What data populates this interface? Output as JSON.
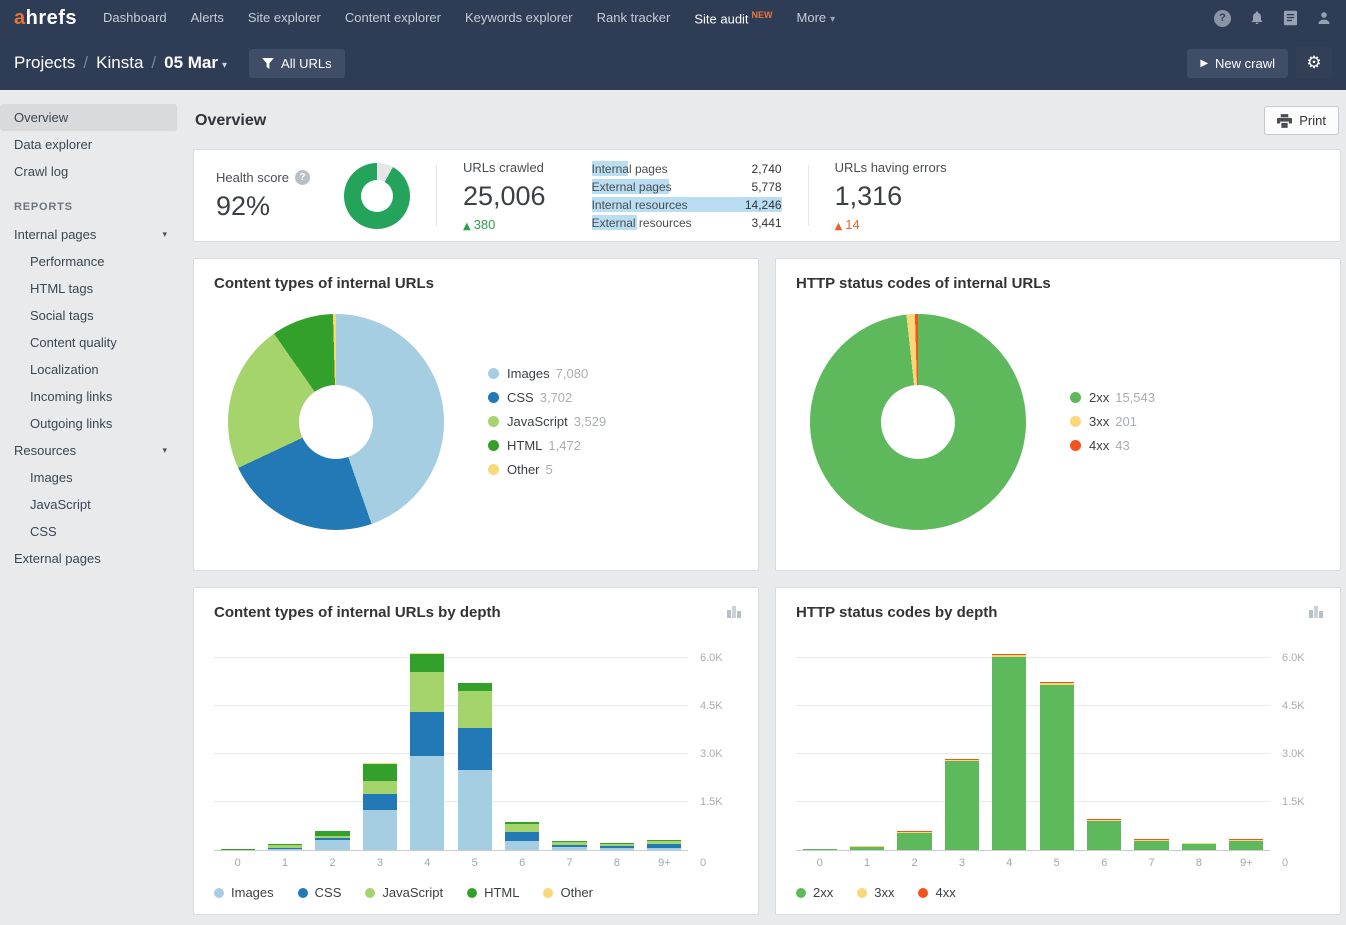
{
  "nav": {
    "logo_a": "a",
    "logo_rest": "hrefs",
    "items": [
      {
        "label": "Dashboard"
      },
      {
        "label": "Alerts"
      },
      {
        "label": "Site explorer"
      },
      {
        "label": "Content explorer"
      },
      {
        "label": "Keywords explorer"
      },
      {
        "label": "Rank tracker"
      },
      {
        "label": "Site audit",
        "active": true,
        "badge": "NEW"
      },
      {
        "label": "More",
        "caret": true
      }
    ]
  },
  "subheader": {
    "breadcrumb": [
      "Projects",
      "Kinsta",
      "05 Mar"
    ],
    "separator": "/",
    "all_urls_label": "All URLs",
    "new_crawl_label": "New crawl"
  },
  "sidebar": {
    "items": [
      {
        "label": "Overview",
        "selected": true
      },
      {
        "label": "Data explorer"
      },
      {
        "label": "Crawl log"
      }
    ],
    "reports_label": "REPORTS",
    "report_items": [
      {
        "label": "Internal pages",
        "caret": true
      },
      {
        "label": "Performance",
        "indent": true
      },
      {
        "label": "HTML tags",
        "indent": true
      },
      {
        "label": "Social tags",
        "indent": true
      },
      {
        "label": "Content quality",
        "indent": true
      },
      {
        "label": "Localization",
        "indent": true
      },
      {
        "label": "Incoming links",
        "indent": true
      },
      {
        "label": "Outgoing links",
        "indent": true
      },
      {
        "label": "Resources",
        "caret": true
      },
      {
        "label": "Images",
        "indent": true
      },
      {
        "label": "JavaScript",
        "indent": true
      },
      {
        "label": "CSS",
        "indent": true
      },
      {
        "label": "External pages"
      }
    ]
  },
  "page": {
    "title": "Overview",
    "print_label": "Print"
  },
  "summary": {
    "health_label": "Health score",
    "health_value": "92%",
    "health_pct": 92,
    "health_color": "#23a45a",
    "health_rest_color": "#e4e6e8",
    "crawled_label": "URLs crawled",
    "crawled_value": "25,006",
    "crawled_delta": "380",
    "errors_label": "URLs having errors",
    "errors_value": "1,316",
    "errors_delta": "14",
    "breakdown": [
      {
        "label": "Internal pages",
        "value": "2,740",
        "pct": 19
      },
      {
        "label": "External pages",
        "value": "5,778",
        "pct": 41
      },
      {
        "label": "Internal resources",
        "value": "14,246",
        "pct": 100
      },
      {
        "label": "External resources",
        "value": "3,441",
        "pct": 24
      }
    ]
  },
  "icons": {
    "help": "?",
    "caret_down": "▾",
    "play": "▶",
    "delta_up": "▲",
    "gear": "⚙"
  },
  "colors": {
    "navbar": "#2e3c55",
    "accent_orange": "#e8743c",
    "highlight_blue": "#b9ddf1",
    "delta_green": "#2e9e4f",
    "delta_orange": "#e8622c"
  },
  "chart_data": [
    {
      "type": "pie",
      "title": "Content types of internal URLs",
      "legend_position": "right",
      "series": [
        {
          "label": "Images",
          "value": 7080,
          "display": "7,080",
          "color": "#a6cee3"
        },
        {
          "label": "CSS",
          "value": 3702,
          "display": "3,702",
          "color": "#2279b5"
        },
        {
          "label": "JavaScript",
          "value": 3529,
          "display": "3,529",
          "color": "#a5d36c"
        },
        {
          "label": "HTML",
          "value": 1472,
          "display": "1,472",
          "color": "#33a02c"
        },
        {
          "label": "Other",
          "value": 5,
          "display": "5",
          "color": "#f8d878"
        }
      ]
    },
    {
      "type": "pie",
      "title": "HTTP status codes of internal URLs",
      "legend_position": "right",
      "series": [
        {
          "label": "2xx",
          "value": 15543,
          "display": "15,543",
          "color": "#5eb95c"
        },
        {
          "label": "3xx",
          "value": 201,
          "display": "201",
          "color": "#f8d878"
        },
        {
          "label": "4xx",
          "value": 43,
          "display": "43",
          "color": "#f4521e"
        }
      ]
    },
    {
      "type": "stacked-bar",
      "title": "Content types of internal URLs by depth",
      "xlabel": "depth",
      "categories": [
        "0",
        "1",
        "2",
        "3",
        "4",
        "5",
        "6",
        "7",
        "8",
        "9+"
      ],
      "ylim": [
        0,
        6500
      ],
      "yticks": [
        {
          "label": "6.0K",
          "value": 6000
        },
        {
          "label": "4.5K",
          "value": 4500
        },
        {
          "label": "3.0K",
          "value": 3000
        },
        {
          "label": "1.5K",
          "value": 1500
        },
        {
          "label": "0",
          "value": 0
        }
      ],
      "grid": true,
      "legend_position": "bottom",
      "series": [
        {
          "name": "Images",
          "color": "#a6cee3",
          "values": [
            0,
            20,
            300,
            1250,
            2950,
            2500,
            270,
            90,
            70,
            70
          ]
        },
        {
          "name": "CSS",
          "color": "#2279b5",
          "values": [
            0,
            10,
            70,
            500,
            1350,
            1300,
            290,
            80,
            60,
            120
          ]
        },
        {
          "name": "JavaScript",
          "color": "#a5d36c",
          "values": [
            0,
            80,
            60,
            420,
            1270,
            1180,
            250,
            90,
            60,
            80
          ]
        },
        {
          "name": "HTML",
          "color": "#33a02c",
          "values": [
            10,
            10,
            170,
            530,
            560,
            240,
            60,
            30,
            30,
            25
          ]
        },
        {
          "name": "Other",
          "color": "#f8d878",
          "values": [
            0,
            0,
            0,
            2,
            3,
            0,
            0,
            0,
            0,
            0
          ]
        }
      ]
    },
    {
      "type": "stacked-bar",
      "title": "HTTP status codes by depth",
      "xlabel": "depth",
      "categories": [
        "0",
        "1",
        "2",
        "3",
        "4",
        "5",
        "6",
        "7",
        "8",
        "9+"
      ],
      "ylim": [
        0,
        6500
      ],
      "yticks": [
        {
          "label": "6.0K",
          "value": 6000
        },
        {
          "label": "4.5K",
          "value": 4500
        },
        {
          "label": "3.0K",
          "value": 3000
        },
        {
          "label": "1.5K",
          "value": 1500
        },
        {
          "label": "0",
          "value": 0
        }
      ],
      "grid": true,
      "legend_position": "bottom",
      "series": [
        {
          "name": "2xx",
          "color": "#5eb95c",
          "values": [
            5,
            90,
            540,
            2780,
            6020,
            5170,
            920,
            285,
            195,
            295
          ]
        },
        {
          "name": "3xx",
          "color": "#f8d878",
          "values": [
            0,
            3,
            5,
            40,
            90,
            45,
            10,
            5,
            2,
            1
          ]
        },
        {
          "name": "4xx",
          "color": "#f4521e",
          "values": [
            0,
            0,
            1,
            2,
            5,
            30,
            2,
            2,
            0,
            1
          ]
        }
      ]
    }
  ]
}
